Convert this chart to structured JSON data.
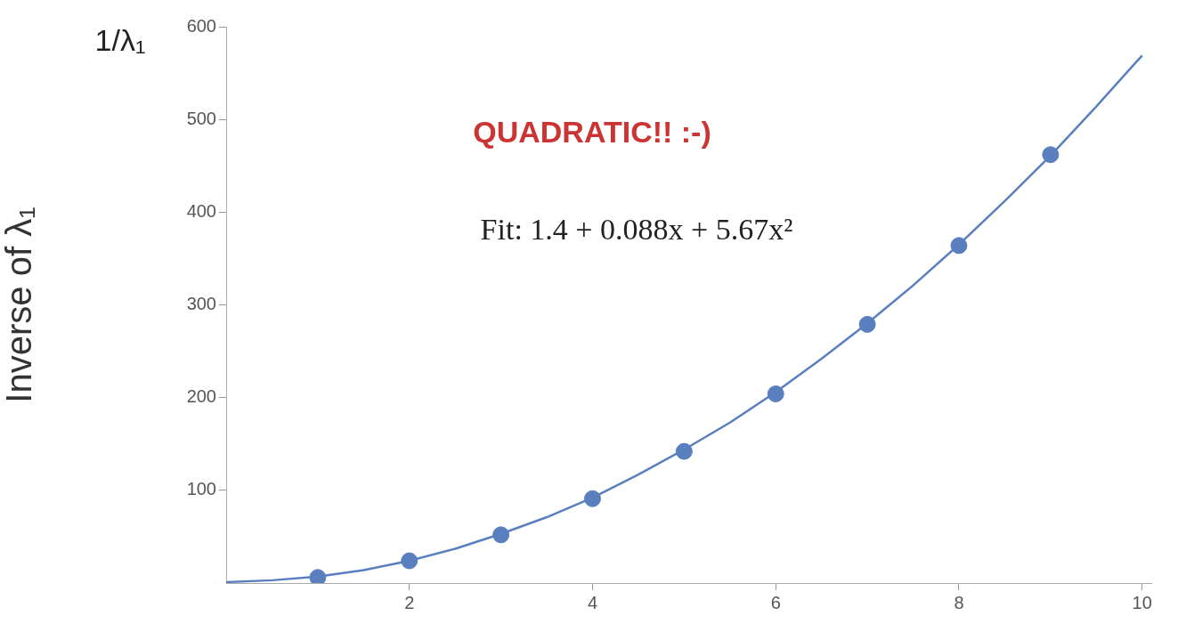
{
  "chart_data": {
    "type": "scatter",
    "ylabel": "Inverse of λ₁",
    "annotations": [
      "1/λ₁",
      "QUADRATIC!! :-)",
      "Fit: 1.4 + 0.088x + 5.67x²"
    ],
    "xlim": [
      0,
      10.1
    ],
    "xticks": [
      2,
      4,
      6,
      8,
      10
    ],
    "ylim": [
      0,
      600
    ],
    "yticks": [
      100,
      200,
      300,
      400,
      500,
      600
    ],
    "grid": false,
    "legend": false,
    "series": [
      {
        "type": "line",
        "color": "#5a7fbf",
        "marker": "none",
        "x": [
          0,
          0.5,
          1,
          1.5,
          2,
          2.5,
          3,
          3.5,
          4,
          4.5,
          5,
          5.5,
          6,
          6.5,
          7,
          7.5,
          8,
          8.5,
          9,
          9.5,
          10
        ],
        "values": [
          1,
          3,
          7,
          14,
          24,
          37,
          53,
          71,
          92,
          117,
          144,
          173,
          206,
          242,
          280,
          321,
          365,
          412,
          461,
          514,
          569
        ]
      },
      {
        "color": "#5a7fbf",
        "marker": "circle",
        "x": [
          1,
          2,
          3,
          4,
          5,
          6,
          7,
          8,
          9
        ],
        "values": [
          6,
          24,
          52,
          91,
          142,
          204,
          279,
          364,
          462
        ]
      }
    ]
  }
}
